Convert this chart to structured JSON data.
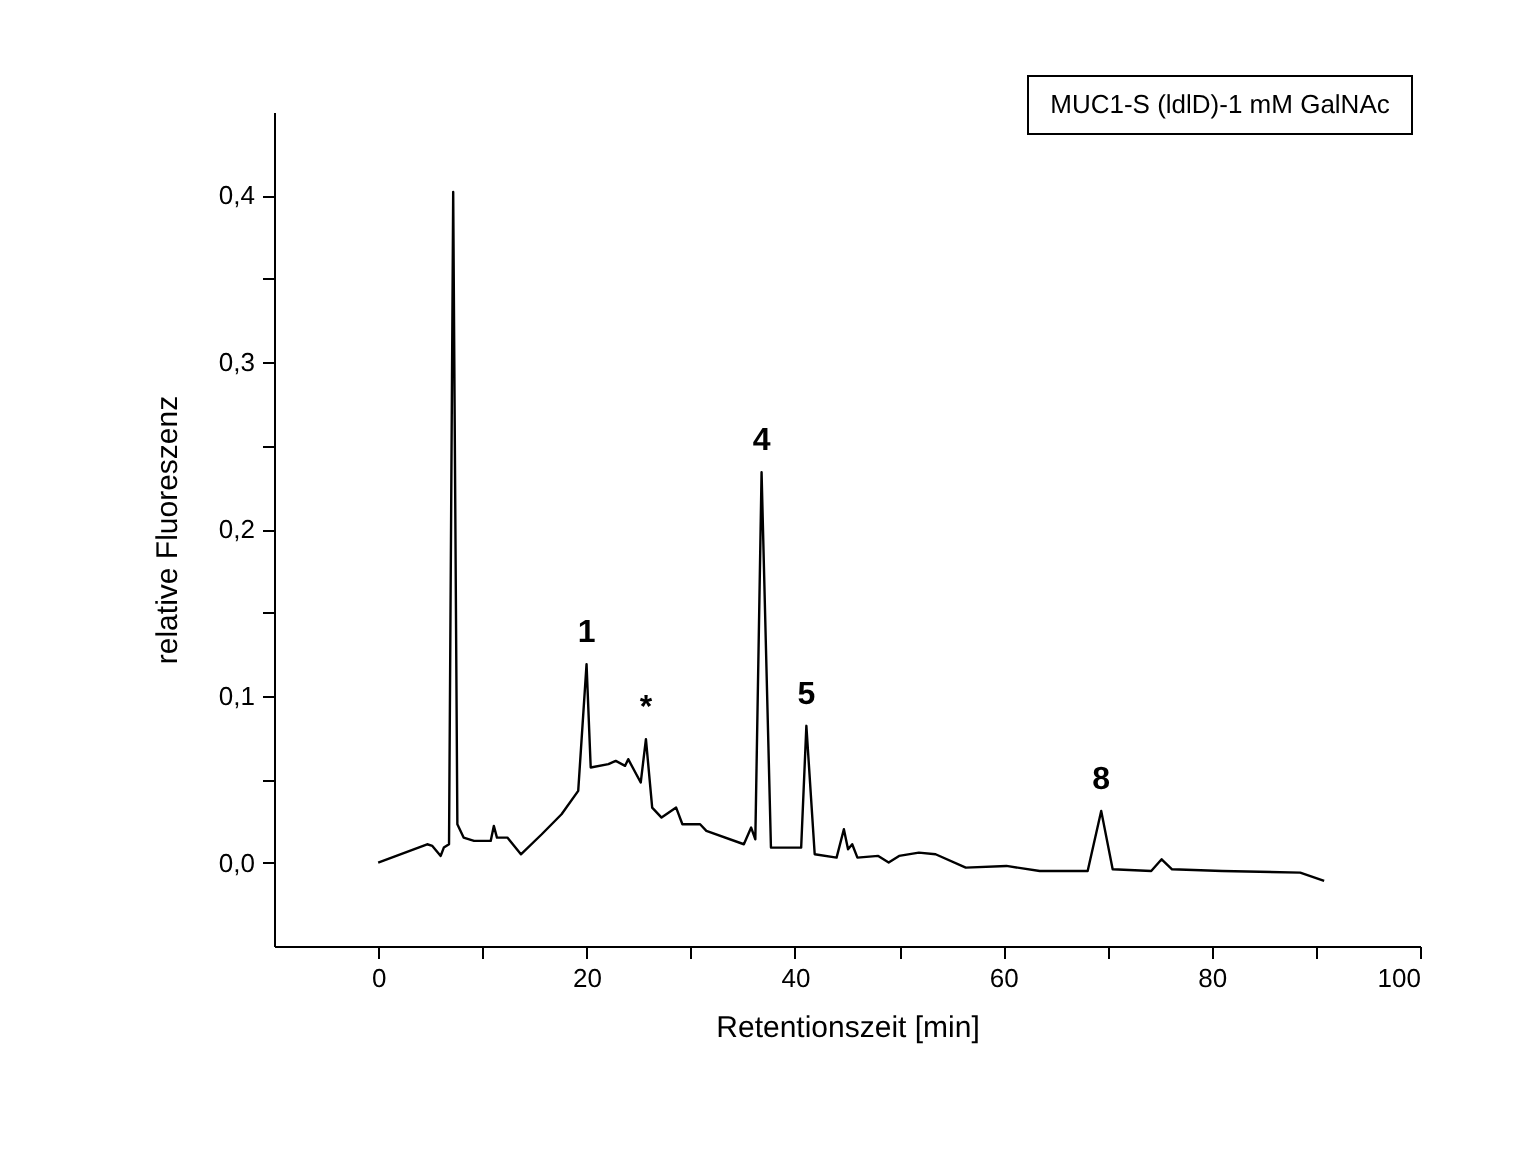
{
  "chart_data": {
    "type": "line",
    "title": "MUC1-S (ldlD)-1 mM GalNAc",
    "xlabel": "Retentionszeit [min]",
    "ylabel": "relative Fluoreszenz",
    "x": [
      0,
      4.7,
      5.2,
      6.0,
      6.3,
      6.8,
      7.2,
      7.6,
      8.2,
      9.2,
      10.8,
      11.1,
      11.4,
      12.4,
      13.7,
      15.7,
      17.6,
      19.2,
      20.0,
      20.4,
      22.1,
      22.8,
      23.7,
      24.0,
      25.2,
      25.7,
      26.3,
      27.2,
      28.6,
      29.2,
      30.9,
      31.5,
      35.1,
      35.8,
      36.2,
      36.8,
      37.7,
      40.6,
      41.1,
      41.9,
      44.0,
      44.7,
      45.1,
      45.5,
      46.0,
      48.0,
      49.0,
      50.0,
      51.9,
      53.5,
      56.4,
      60.3,
      63.5,
      68.1,
      69.4,
      70.5,
      74.2,
      75.2,
      76.2,
      81.0,
      88.5,
      90.8
    ],
    "series": [
      {
        "color": "#000000",
        "values": [
          0.0,
          0.011,
          0.01,
          0.004,
          0.009,
          0.011,
          0.402,
          0.023,
          0.015,
          0.013,
          0.013,
          0.022,
          0.015,
          0.015,
          0.005,
          0.017,
          0.029,
          0.043,
          0.119,
          0.057,
          0.059,
          0.061,
          0.058,
          0.062,
          0.048,
          0.074,
          0.033,
          0.027,
          0.033,
          0.023,
          0.023,
          0.019,
          0.011,
          0.021,
          0.014,
          0.234,
          0.009,
          0.009,
          0.082,
          0.005,
          0.003,
          0.02,
          0.008,
          0.011,
          0.003,
          0.004,
          0.0,
          0.004,
          0.006,
          0.005,
          -0.003,
          -0.002,
          -0.005,
          -0.005,
          0.031,
          -0.004,
          -0.005,
          0.002,
          -0.004,
          -0.005,
          -0.006,
          -0.011
        ]
      }
    ],
    "xlim": [
      -10,
      100
    ],
    "xticks": [
      0,
      {
        "value": 10,
        "label": null
      },
      20,
      {
        "value": 30,
        "label": null
      },
      40,
      {
        "value": 50,
        "label": null
      },
      60,
      {
        "value": 70,
        "label": null
      },
      80,
      {
        "value": 90,
        "label": null
      },
      100
    ],
    "ylim": [
      -0.05,
      0.45
    ],
    "yticks": [
      {
        "value": 0.0,
        "label": "0,0"
      },
      {
        "value": 0.05,
        "label": null
      },
      {
        "value": 0.1,
        "label": "0,1"
      },
      {
        "value": 0.15,
        "label": null
      },
      {
        "value": 0.2,
        "label": "0,2"
      },
      {
        "value": 0.25,
        "label": null
      },
      {
        "value": 0.3,
        "label": "0,3"
      },
      {
        "value": 0.35,
        "label": null
      },
      {
        "value": 0.4,
        "label": "0,4"
      }
    ],
    "annotations": [
      {
        "text": "1",
        "x": 20.0,
        "y": 0.119
      },
      {
        "text": "*",
        "x": 25.7,
        "y": 0.074
      },
      {
        "text": "4",
        "x": 36.8,
        "y": 0.234
      },
      {
        "text": "5",
        "x": 41.1,
        "y": 0.082
      },
      {
        "text": "8",
        "x": 69.4,
        "y": 0.031
      }
    ],
    "marker": "none",
    "line_style": "solid"
  }
}
